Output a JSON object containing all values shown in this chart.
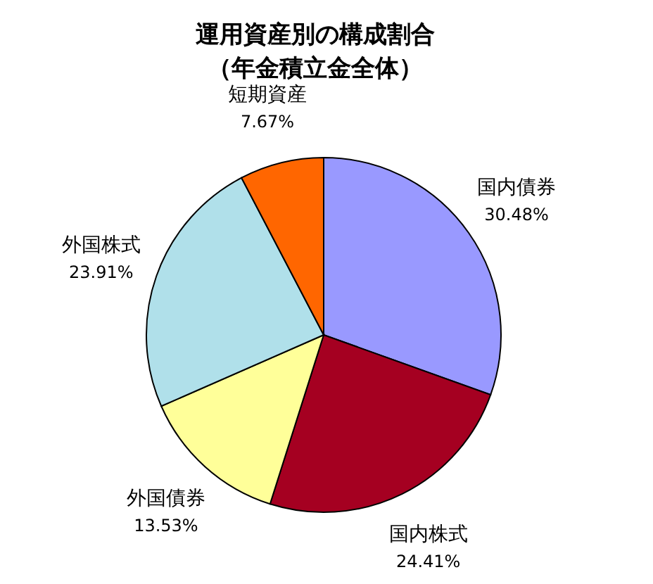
{
  "chart_data": {
    "type": "pie",
    "title": "運用資産別の構成割合",
    "subtitle": "（年金積立金全体）",
    "categories": [
      "国内債券",
      "国内株式",
      "外国債券",
      "外国株式",
      "短期資産"
    ],
    "values": [
      30.48,
      24.41,
      13.53,
      23.91,
      7.67
    ],
    "value_labels": [
      "30.48%",
      "24.41%",
      "13.53%",
      "23.91%",
      "7.67%"
    ],
    "colors": [
      "#9999ff",
      "#a50021",
      "#ffff99",
      "#b0e0ea",
      "#ff6600"
    ],
    "legend": false
  }
}
